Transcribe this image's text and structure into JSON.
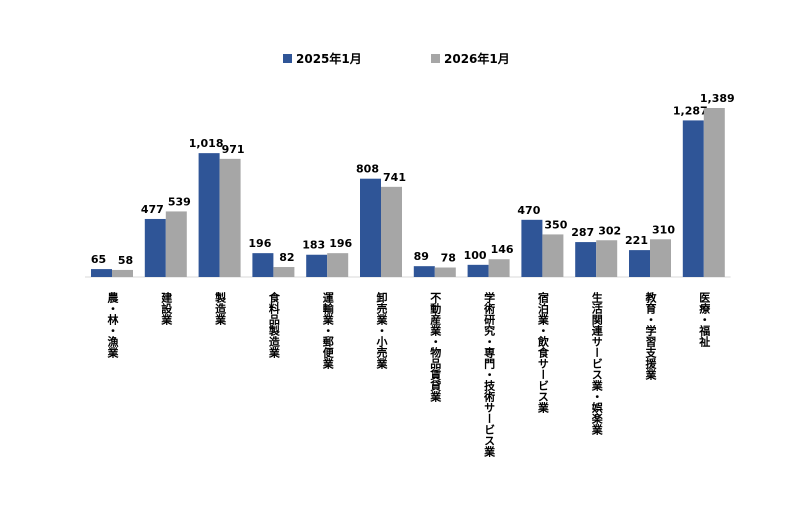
{
  "chart_data": {
    "type": "bar",
    "title": "",
    "xlabel": "",
    "ylabel": "",
    "ylim": [
      0,
      1450
    ],
    "grid": false,
    "legend_position": "top-center",
    "categories": [
      "農・林・漁業",
      "建設業",
      "製造業",
      "食料品製造業",
      "運輸業・郵便業",
      "卸売業・小売業",
      "不動産業・物品賃貸業",
      "学術研究・専門・技術サービス業",
      "宿泊業・飲食サービス業",
      "生活関連サービス業・娯楽業",
      "教育・学習支援業",
      "医療・福祉"
    ],
    "series": [
      {
        "name": "2025年1月",
        "color": "#2F5597",
        "values": [
          65,
          477,
          1018,
          196,
          183,
          808,
          89,
          100,
          470,
          287,
          221,
          1287
        ]
      },
      {
        "name": "2026年1月",
        "color": "#A6A6A6",
        "values": [
          58,
          539,
          971,
          82,
          196,
          741,
          78,
          146,
          350,
          302,
          310,
          1389
        ]
      }
    ]
  }
}
